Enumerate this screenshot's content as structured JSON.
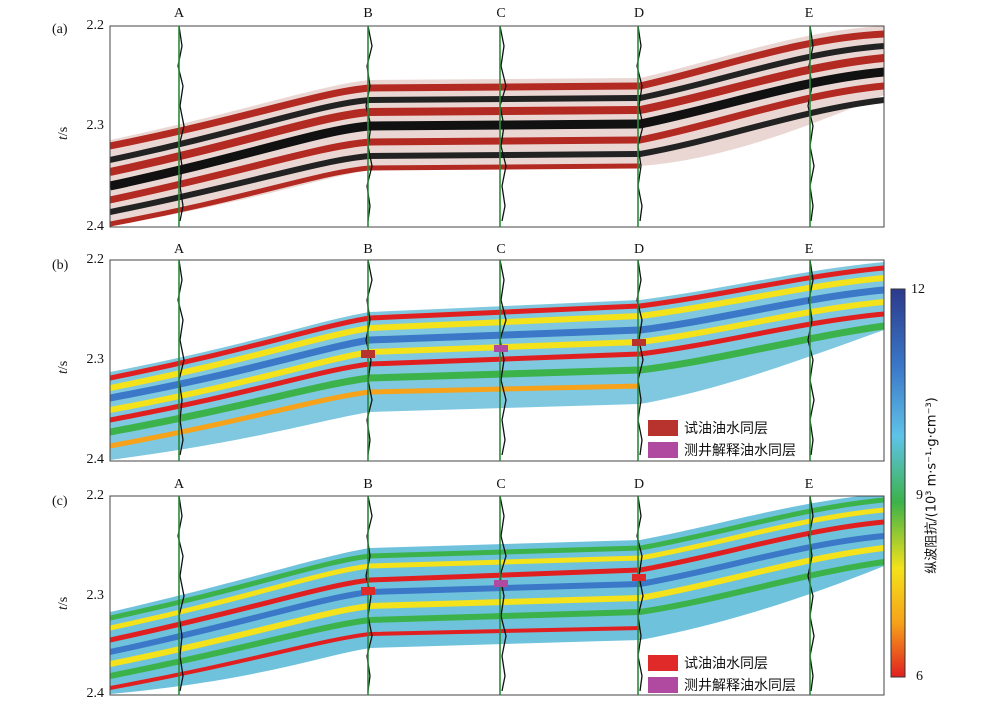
{
  "panels": [
    {
      "id": "a",
      "label": "(a)",
      "yticks": [
        "2.2",
        "2.3",
        "2.4"
      ],
      "ylabel_italic": "t",
      "ylabel_unit": "/s"
    },
    {
      "id": "b",
      "label": "(b)",
      "yticks": [
        "2.2",
        "2.3",
        "2.4"
      ],
      "ylabel_italic": "t",
      "ylabel_unit": "/s"
    },
    {
      "id": "c",
      "label": "(c)",
      "yticks": [
        "2.2",
        "2.3",
        "2.4"
      ],
      "ylabel_italic": "t",
      "ylabel_unit": "/s"
    }
  ],
  "wells": [
    "A",
    "B",
    "C",
    "D",
    "E"
  ],
  "legend_b": [
    {
      "label": "试油油水同层",
      "color": "#b8322e"
    },
    {
      "label": "测井解释油水同层",
      "color": "#b04aa0"
    }
  ],
  "legend_c": [
    {
      "label": "试油油水同层",
      "color": "#e02a2a"
    },
    {
      "label": "测井解释油水同层",
      "color": "#b04aa0"
    }
  ],
  "colorbar": {
    "title": "纵波阻抗/(10³ m·s⁻¹·g·cm⁻³)",
    "ticks": [
      "12",
      "9",
      "6"
    ],
    "stops": [
      "#2b3a8c",
      "#3b78c8",
      "#5fc3e8",
      "#3cb24a",
      "#f4e21a",
      "#f6a21a",
      "#e02020"
    ]
  },
  "colors": {
    "seismic_red": "#b22a22",
    "seismic_black": "#111111",
    "well_green": "#2a8a3a"
  }
}
